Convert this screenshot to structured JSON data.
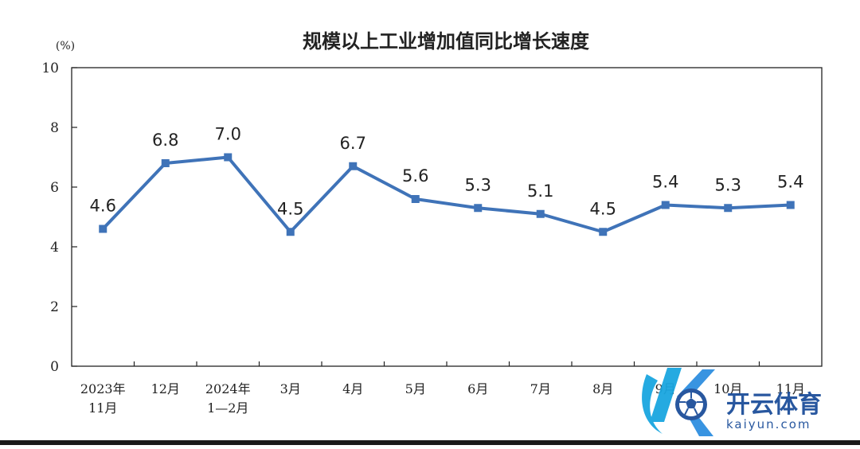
{
  "chart_data": {
    "type": "line",
    "title": "规模以上工业增加值同比增长速度",
    "ylabel": "(%)",
    "xlabel": "",
    "ylim": [
      0,
      10
    ],
    "yticks": [
      "0",
      "2",
      "4",
      "6",
      "8",
      "10"
    ],
    "grid": false,
    "legend": "none",
    "categories": [
      [
        "2023年",
        "11月"
      ],
      [
        "12月"
      ],
      [
        "2024年",
        "1—2月"
      ],
      [
        "3月"
      ],
      [
        "4月"
      ],
      [
        "5月"
      ],
      [
        "6月"
      ],
      [
        "7月"
      ],
      [
        "8月"
      ],
      [
        "9月"
      ],
      [
        "10月"
      ],
      [
        "11月"
      ]
    ],
    "series": [
      {
        "values": [
          4.6,
          6.8,
          7.0,
          4.5,
          6.7,
          5.6,
          5.3,
          5.1,
          4.5,
          5.4,
          5.3,
          5.4
        ],
        "labels": [
          "4.6",
          "6.8",
          "7.0",
          "4.5",
          "6.7",
          "5.6",
          "5.3",
          "5.1",
          "4.5",
          "5.4",
          "5.3",
          "5.4"
        ]
      }
    ],
    "colors": {
      "line": "#3f73b8",
      "axis": "#222222",
      "text": "#222222"
    }
  },
  "watermark": {
    "brand_text": "开云体育",
    "domain_text": "kaiyun.com",
    "colors": {
      "primary": "#1aa6e0",
      "dark": "#1d4f9a"
    }
  }
}
